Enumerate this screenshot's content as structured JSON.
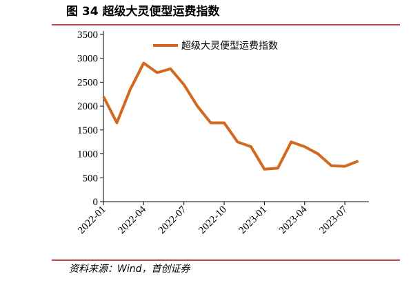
{
  "chart_data": {
    "type": "line",
    "title": "图 34  超级大灵便型运费指数",
    "source": "资料来源：Wind，首创证券",
    "x": [
      "2022-01",
      "2022-02",
      "2022-03",
      "2022-04",
      "2022-05",
      "2022-06",
      "2022-07",
      "2022-08",
      "2022-09",
      "2022-10",
      "2022-11",
      "2022-12",
      "2023-01",
      "2023-02",
      "2023-03",
      "2023-04",
      "2023-05",
      "2023-06",
      "2023-07",
      "2023-08"
    ],
    "series": [
      {
        "name": "超级大灵便型运费指数",
        "color": "#d2691e",
        "values": [
          2200,
          1650,
          2350,
          2900,
          2700,
          2780,
          2450,
          2000,
          1650,
          1650,
          1250,
          1150,
          680,
          700,
          1250,
          1150,
          1000,
          750,
          740,
          850
        ]
      }
    ],
    "ylim": [
      0,
      3500
    ],
    "yticks": [
      0,
      500,
      1000,
      1500,
      2000,
      2500,
      3000,
      3500
    ],
    "xticks": [
      "2022-01",
      "2022-04",
      "2022-07",
      "2022-10",
      "2023-01",
      "2023-04",
      "2023-07"
    ]
  }
}
